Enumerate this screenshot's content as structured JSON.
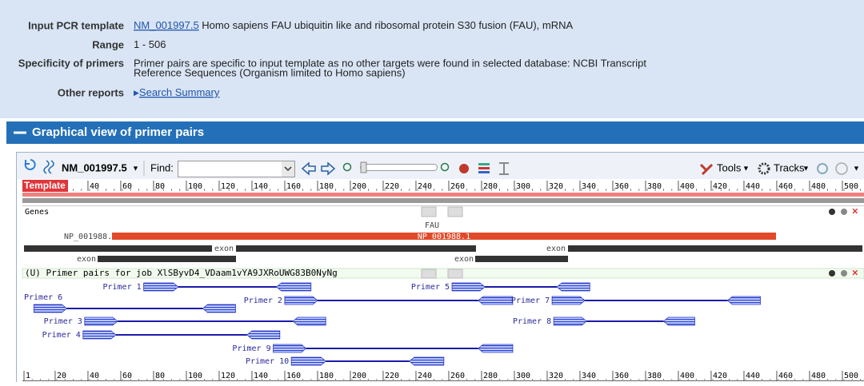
{
  "info": [
    {
      "label": "Input PCR template",
      "link": "NM_001997.5",
      "text": "Homo sapiens FAU ubiquitin like and ribosomal protein S30 fusion (FAU), mRNA"
    },
    {
      "label": "Range",
      "text": "1 - 506"
    },
    {
      "label": "Specificity of primers",
      "text": [
        "Primer pairs are specific to input template as no other targets were found in selected database: NCBI Transcript",
        "Reference Sequences (Organism limited to Homo sapiens)"
      ]
    },
    {
      "label": "Other reports",
      "link": "Search Summary"
    }
  ],
  "section_title": "Graphical view of primer pairs",
  "viewer": {
    "accession": "NM_001997.5",
    "find_label": "Find:",
    "tools": "Tools",
    "tracks": "Tracks",
    "ruler_label": "Template",
    "top_ticks": [
      40,
      60,
      80,
      100,
      120,
      140,
      160,
      180,
      200,
      220,
      240,
      260,
      280,
      300,
      320,
      340,
      360,
      380,
      400,
      420,
      440,
      460,
      480,
      500
    ],
    "bottom_ticks": [
      1,
      20,
      40,
      60,
      80,
      100,
      120,
      140,
      160,
      180,
      200,
      220,
      240,
      260,
      280,
      300,
      320,
      340,
      360,
      380,
      400,
      420,
      440,
      460,
      480,
      500
    ],
    "genes_track": "Genes",
    "gene": "FAU",
    "protein": "NP_001988.1",
    "exon": "exon",
    "primer_track": "(U) Primer pairs for job XlSByvD4_VDaam1vYA9JXRoUWG83B0NyNg",
    "primers": [
      {
        "label": "Primer 1",
        "forward": [
          74,
          95
        ],
        "reverse": [
          155,
          176
        ]
      },
      {
        "label": "Primer 6",
        "forward": [
          7,
          27
        ],
        "reverse": [
          110,
          130
        ]
      },
      {
        "label": "Primer 2",
        "forward": [
          160,
          180
        ],
        "reverse": [
          278,
          299
        ]
      },
      {
        "label": "Primer 5",
        "forward": [
          262,
          282
        ],
        "reverse": [
          326,
          346
        ]
      },
      {
        "label": "Primer 7",
        "forward": [
          323,
          343
        ],
        "reverse": [
          430,
          450
        ]
      },
      {
        "label": "Primer 3",
        "forward": [
          38,
          58
        ],
        "reverse": [
          165,
          185
        ]
      },
      {
        "label": "Primer 8",
        "forward": [
          324,
          344
        ],
        "reverse": [
          391,
          410
        ]
      },
      {
        "label": "Primer 4",
        "forward": [
          37,
          57
        ],
        "reverse": [
          137,
          157
        ]
      },
      {
        "label": "Primer 9",
        "forward": [
          153,
          173
        ],
        "reverse": [
          278,
          299
        ]
      },
      {
        "label": "Primer 10",
        "forward": [
          164,
          185
        ],
        "reverse": [
          236,
          257
        ]
      }
    ]
  }
}
